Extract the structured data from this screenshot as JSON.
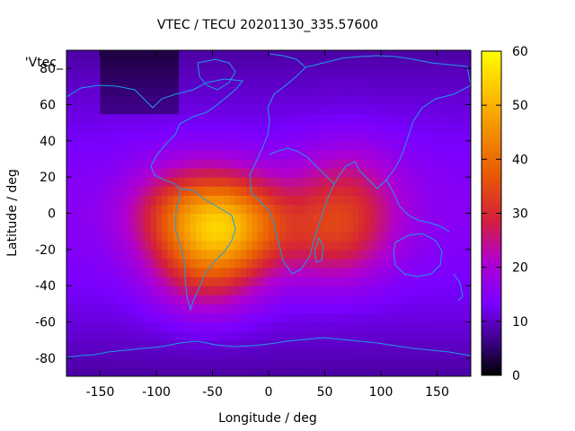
{
  "chart_data": {
    "type": "heatmap",
    "title": "VTEC / TECU 20201130_335.57600",
    "xlabel": "Longitude / deg",
    "ylabel": "Latitude / deg",
    "xlim": [
      -180,
      180
    ],
    "ylim": [
      -90,
      90
    ],
    "x_ticks": [
      -150,
      -100,
      -50,
      0,
      50,
      100,
      150
    ],
    "y_ticks": [
      80,
      60,
      40,
      20,
      0,
      -20,
      -40,
      -60,
      -80
    ],
    "colorbar": {
      "range": [
        0,
        60
      ],
      "ticks": [
        0,
        10,
        20,
        30,
        40,
        50,
        60
      ]
    },
    "legend_key": "'Vtec_",
    "overlay": "coastlines",
    "colors": {
      "coastline": "#1e9be8",
      "frame": "#000000"
    },
    "vtec_sources": [
      {
        "lon": -30,
        "lat": -5,
        "value": 40
      },
      {
        "lon": -75,
        "lat": 0,
        "value": 32
      },
      {
        "lon": -55,
        "lat": -30,
        "value": 30
      },
      {
        "lon": 60,
        "lat": -12,
        "value": 30
      },
      {
        "lon": 70,
        "lat": 15,
        "value": 24
      }
    ],
    "vtec_background_low": 8,
    "vtec_background_high": 15
  }
}
